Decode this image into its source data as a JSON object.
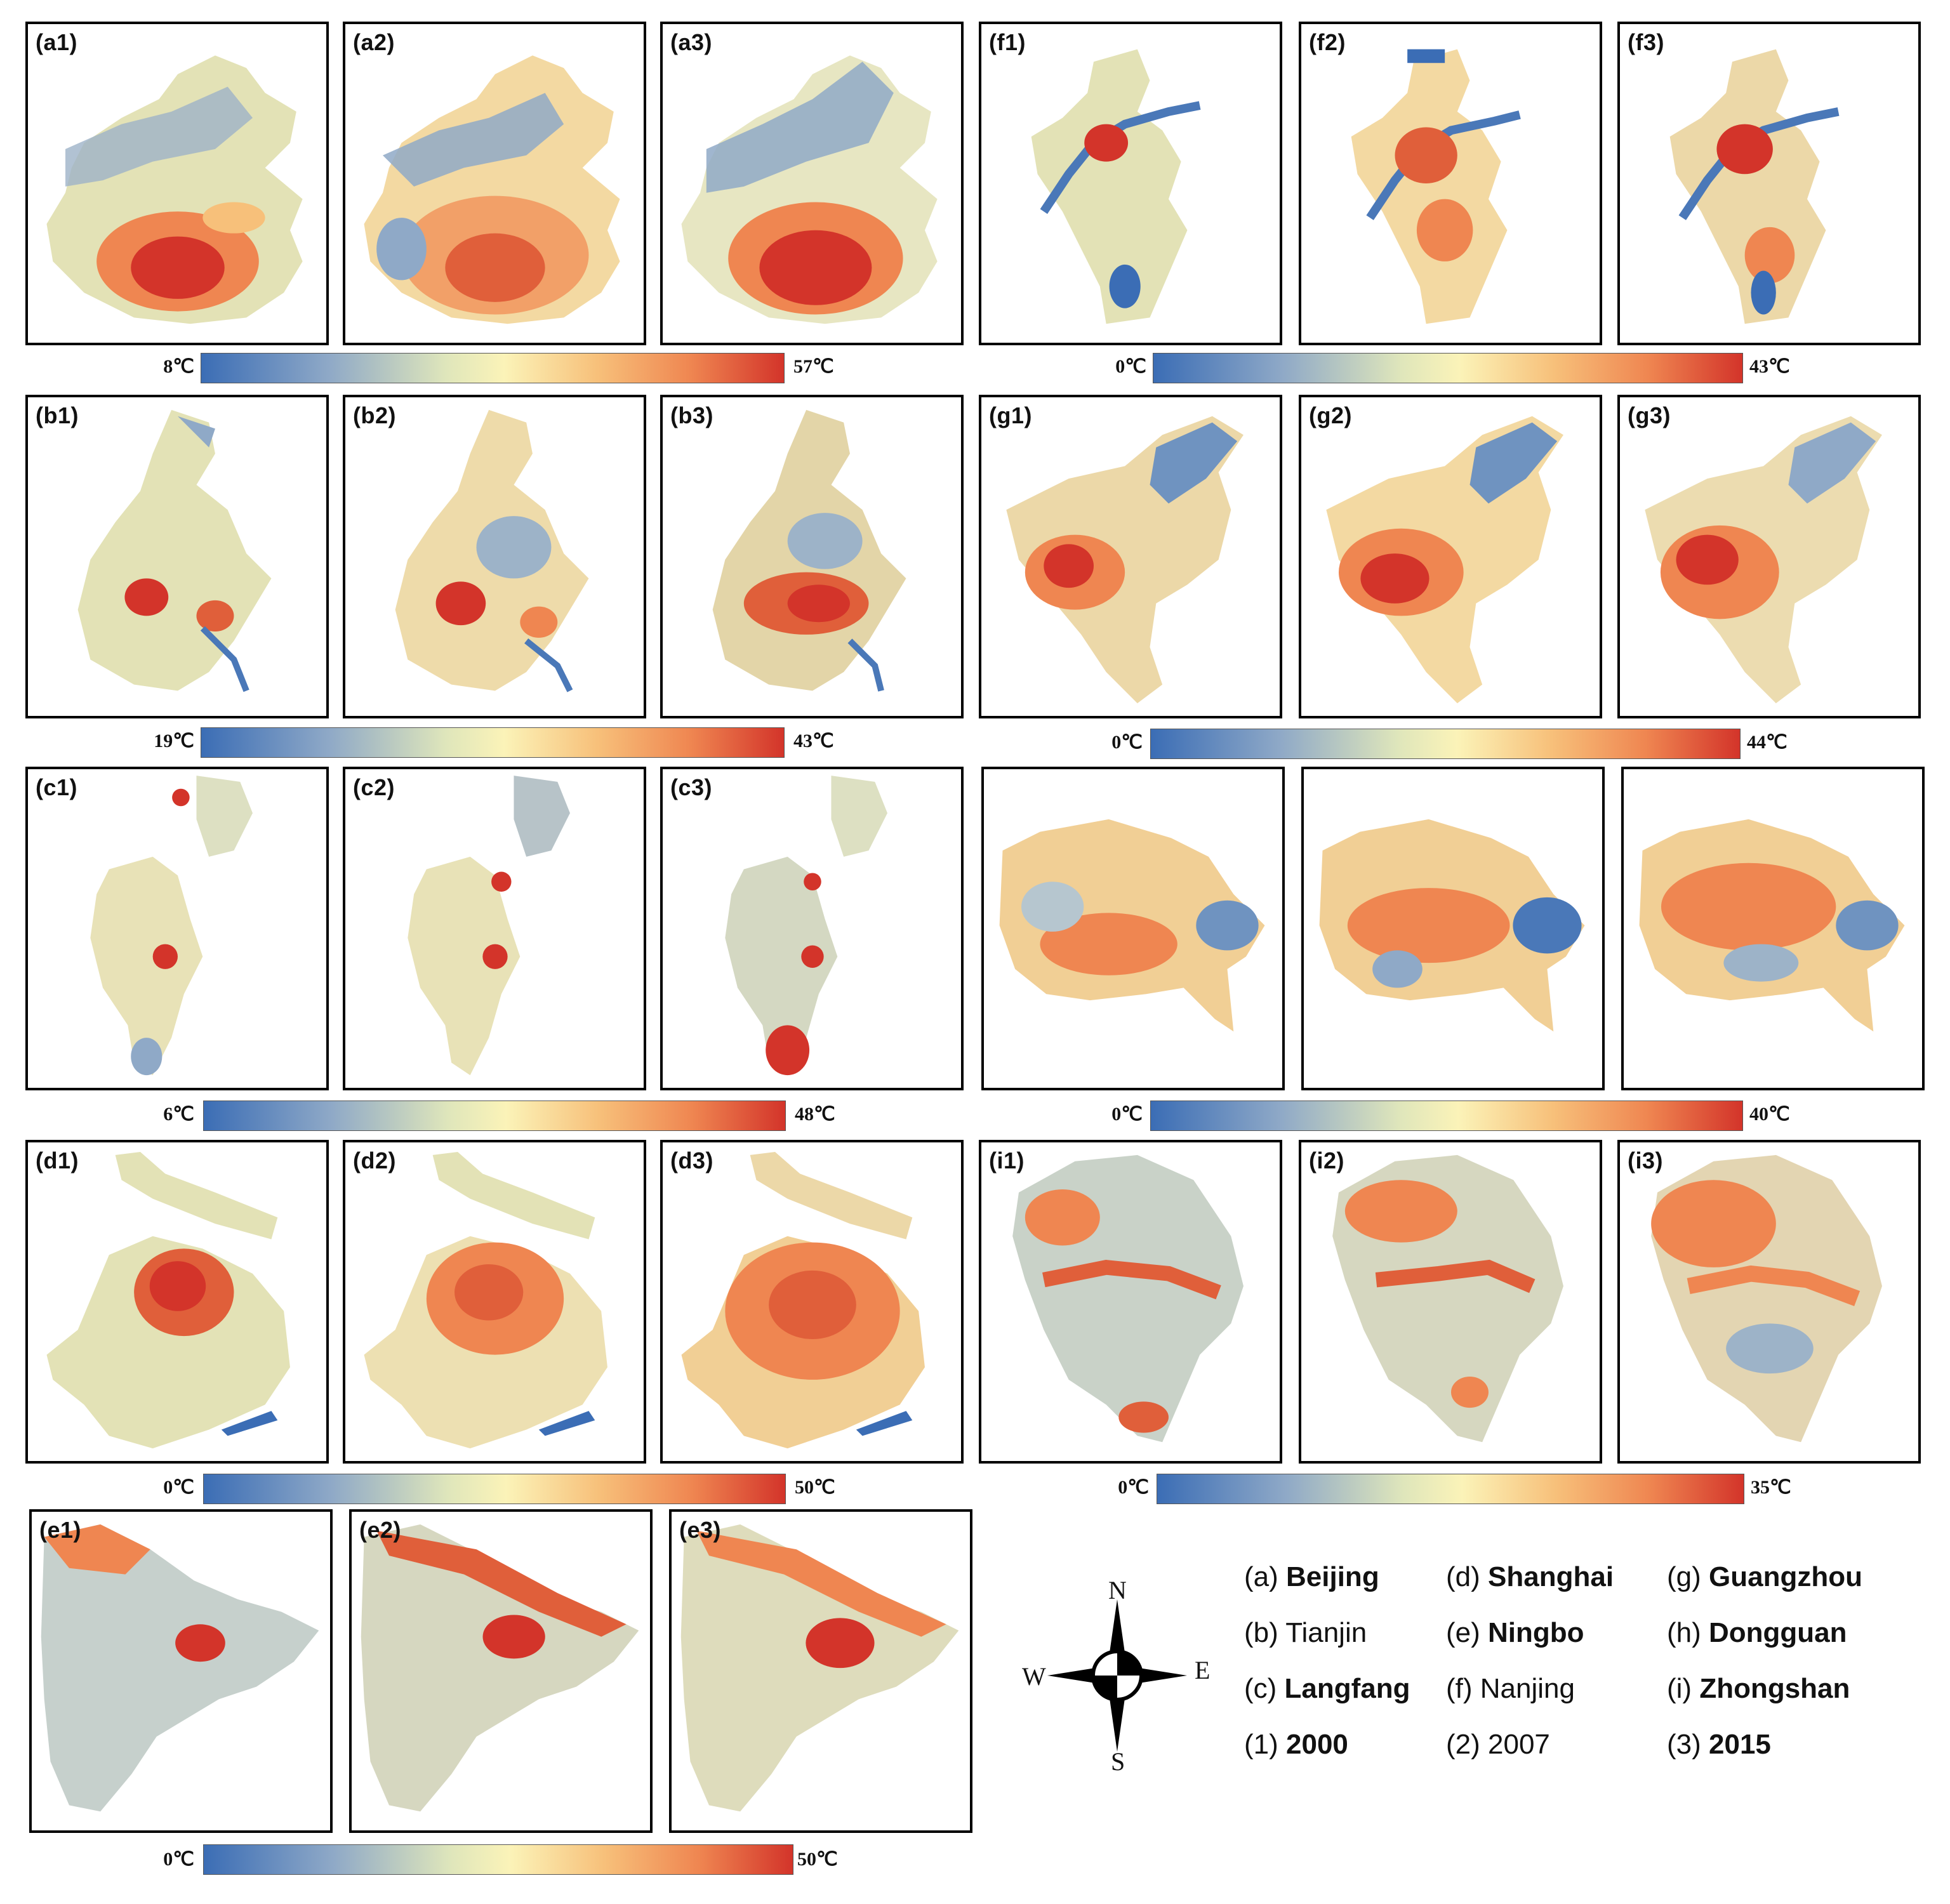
{
  "panels": {
    "a1": "(a1)",
    "a2": "(a2)",
    "a3": "(a3)",
    "b1": "(b1)",
    "b2": "(b2)",
    "b3": "(b3)",
    "c1": "(c1)",
    "c2": "(c2)",
    "c3": "(c3)",
    "d1": "(d1)",
    "d2": "(d2)",
    "d3": "(d3)",
    "e1": "(e1)",
    "e2": "(e2)",
    "e3": "(e3)",
    "f1": "(f1)",
    "f2": "(f2)",
    "f3": "(f3)",
    "g1": "(g1)",
    "g2": "(g2)",
    "g3": "(g3)",
    "i1": "(i1)",
    "i2": "(i2)",
    "i3": "(i3)"
  },
  "colorbars": {
    "a": {
      "min": "8℃",
      "max": "57℃"
    },
    "b": {
      "min": "19℃",
      "max": "43℃"
    },
    "c": {
      "min": "6℃",
      "max": "48℃"
    },
    "d": {
      "min": "0℃",
      "max": "50℃"
    },
    "e": {
      "min": "0℃",
      "max": "50℃"
    },
    "f": {
      "min": "0℃",
      "max": "43℃"
    },
    "g": {
      "min": "0℃",
      "max": "44℃"
    },
    "h": {
      "min": "0℃",
      "max": "40℃"
    },
    "i": {
      "min": "0℃",
      "max": "35℃"
    }
  },
  "compass": {
    "n": "N",
    "s": "S",
    "e": "E",
    "w": "W"
  },
  "legend": {
    "a_key": "(a)",
    "a_name": "Beijing",
    "b_key": "(b)",
    "b_name": "Tianjin",
    "c_key": "(c)",
    "c_name": "Langfang",
    "d_key": "(d)",
    "d_name": "Shanghai",
    "e_key": "(e)",
    "e_name": "Ningbo",
    "f_key": "(f)",
    "f_name": "Nanjing",
    "g_key": "(g)",
    "g_name": "Guangzhou",
    "h_key": "(h)",
    "h_name": "Dongguan",
    "i_key": "(i)",
    "i_name": "Zhongshan",
    "y1_key": "(1)",
    "y1_val": "2000",
    "y2_key": "(2)",
    "y2_val": "2007",
    "y3_key": "(3)",
    "y3_val": "2015"
  },
  "colors": {
    "cold": "#3b6db5",
    "mid": "#fbf3b8",
    "hot": "#d3342a"
  }
}
